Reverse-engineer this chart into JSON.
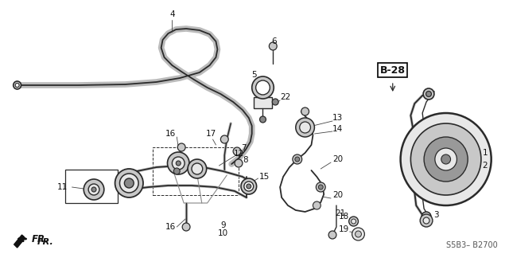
{
  "background_color": "#ffffff",
  "line_color": "#2a2a2a",
  "gray_fill": "#c8c8c8",
  "dark_fill": "#888888",
  "light_fill": "#e8e8e8",
  "footer_text": "S5B3– B2700",
  "label_fontsize": 7.5,
  "figsize": [
    6.4,
    3.19
  ],
  "dpi": 100,
  "xlim": [
    0,
    640
  ],
  "ylim": [
    0,
    319
  ]
}
